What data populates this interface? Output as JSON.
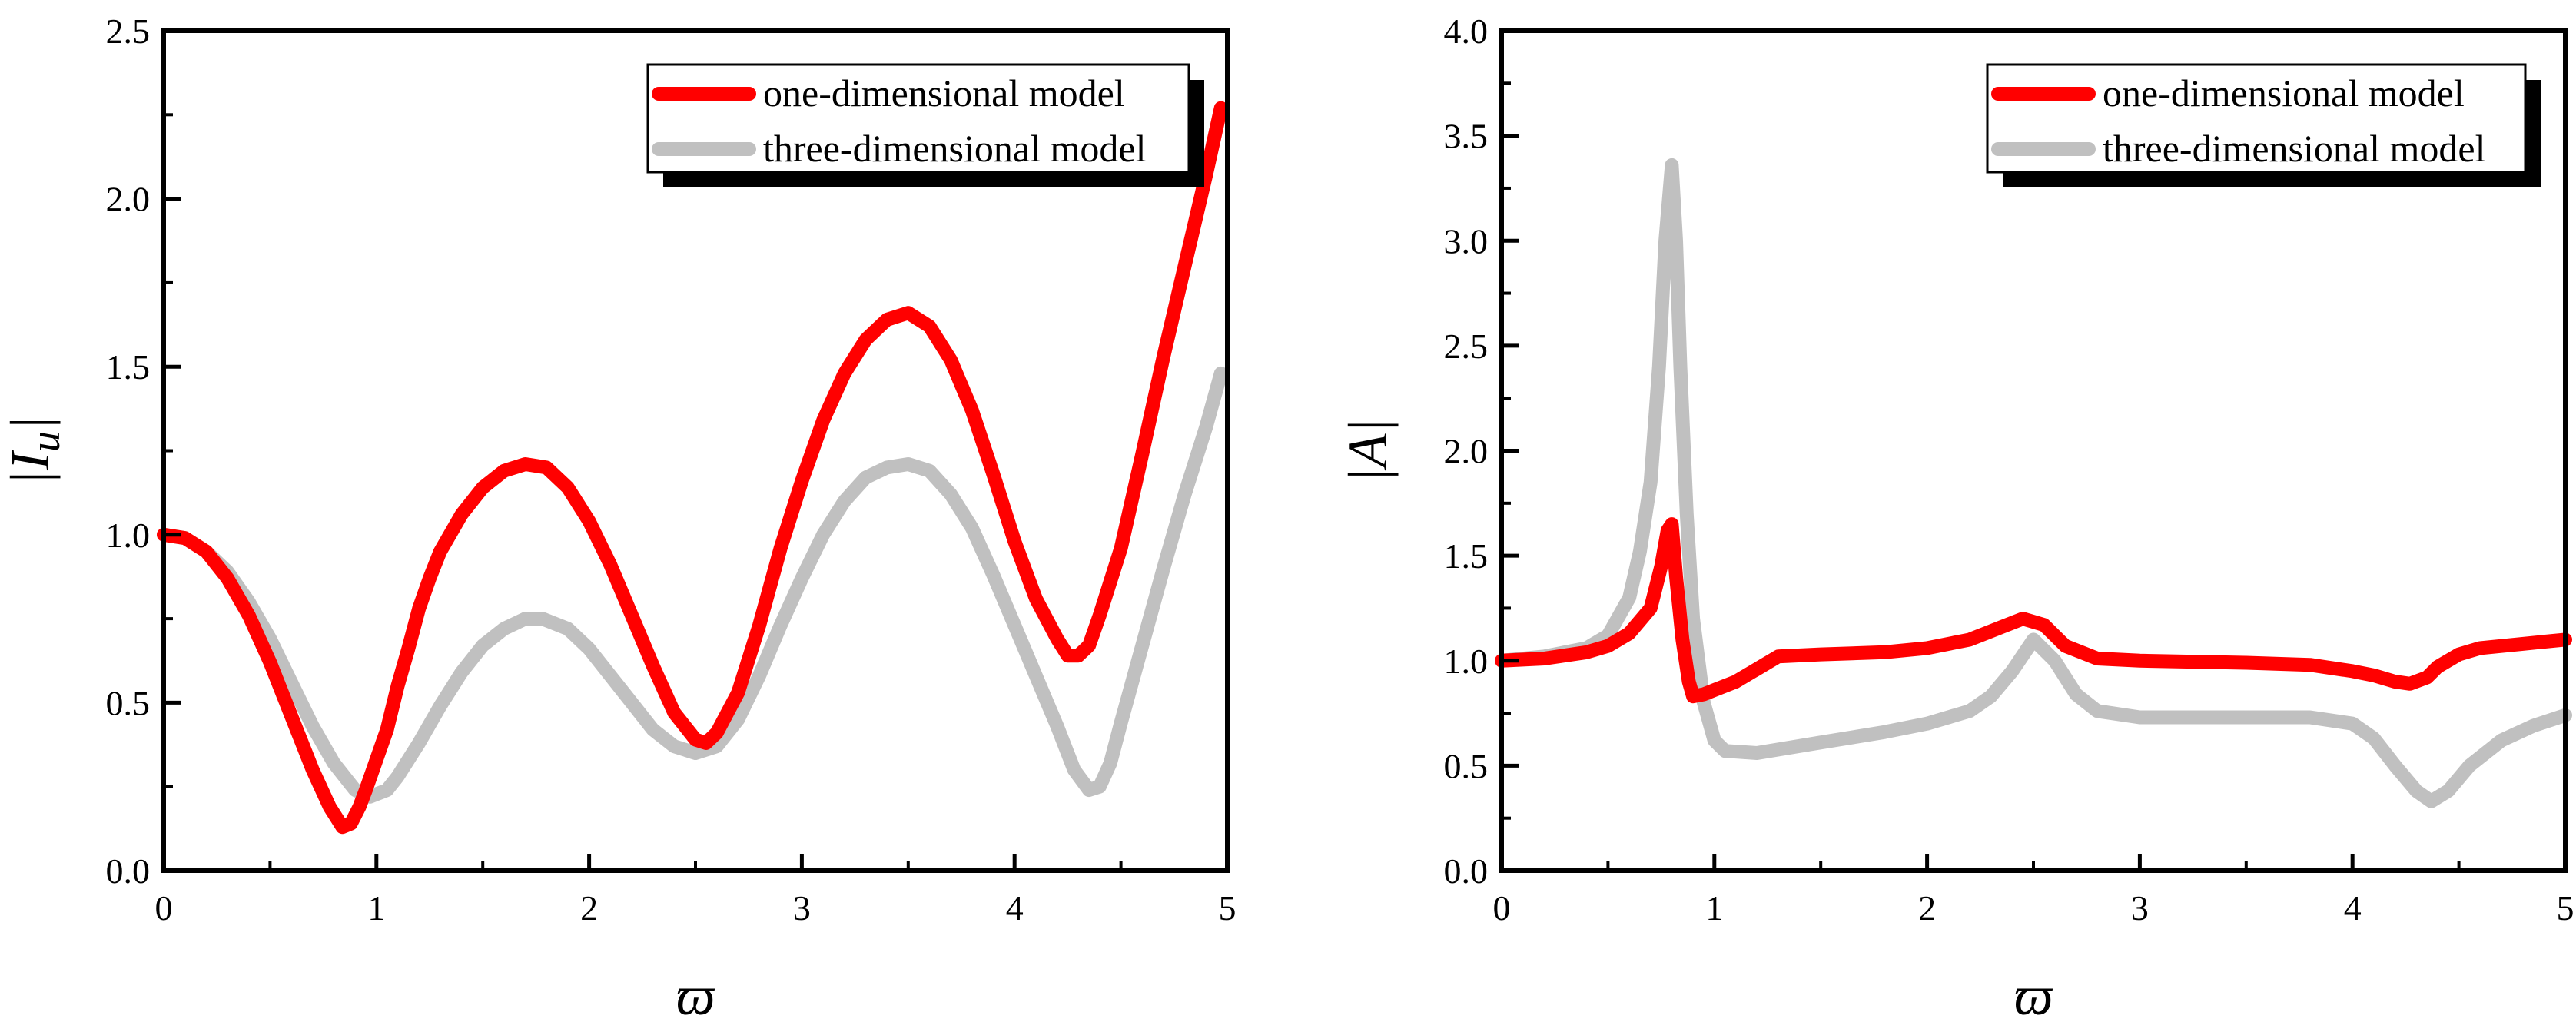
{
  "chart_data": [
    {
      "type": "line",
      "title": "",
      "xlabel": "ϖ",
      "ylabel": "|I_u|",
      "ylabel_main": "|I",
      "ylabel_sub": "u",
      "ylabel_end": "|",
      "xlim": [
        0,
        5
      ],
      "ylim": [
        0,
        2.5
      ],
      "x_ticks": [
        "0",
        "1",
        "2",
        "3",
        "4",
        "5"
      ],
      "y_ticks": [
        "0.0",
        "0.5",
        "1.0",
        "1.5",
        "2.0",
        "2.5"
      ],
      "legend_position": "top-right",
      "grid": false,
      "series": [
        {
          "name": "one-dimensional model",
          "color": "#ff0000",
          "points": [
            [
              0,
              1.0
            ],
            [
              0.1,
              0.99
            ],
            [
              0.2,
              0.95
            ],
            [
              0.3,
              0.87
            ],
            [
              0.4,
              0.76
            ],
            [
              0.5,
              0.62
            ],
            [
              0.6,
              0.46
            ],
            [
              0.7,
              0.3
            ],
            [
              0.78,
              0.19
            ],
            [
              0.84,
              0.13
            ],
            [
              0.88,
              0.14
            ],
            [
              0.92,
              0.19
            ],
            [
              0.95,
              0.24
            ],
            [
              1.0,
              0.33
            ],
            [
              1.05,
              0.42
            ],
            [
              1.1,
              0.55
            ],
            [
              1.15,
              0.66
            ],
            [
              1.2,
              0.78
            ],
            [
              1.25,
              0.87
            ],
            [
              1.3,
              0.95
            ],
            [
              1.4,
              1.06
            ],
            [
              1.5,
              1.14
            ],
            [
              1.6,
              1.19
            ],
            [
              1.7,
              1.21
            ],
            [
              1.8,
              1.2
            ],
            [
              1.9,
              1.14
            ],
            [
              2.0,
              1.04
            ],
            [
              2.1,
              0.91
            ],
            [
              2.2,
              0.76
            ],
            [
              2.3,
              0.61
            ],
            [
              2.4,
              0.47
            ],
            [
              2.5,
              0.39
            ],
            [
              2.55,
              0.38
            ],
            [
              2.6,
              0.41
            ],
            [
              2.7,
              0.53
            ],
            [
              2.8,
              0.73
            ],
            [
              2.9,
              0.96
            ],
            [
              3.0,
              1.16
            ],
            [
              3.1,
              1.34
            ],
            [
              3.2,
              1.48
            ],
            [
              3.3,
              1.58
            ],
            [
              3.4,
              1.64
            ],
            [
              3.5,
              1.66
            ],
            [
              3.6,
              1.62
            ],
            [
              3.7,
              1.52
            ],
            [
              3.8,
              1.37
            ],
            [
              3.9,
              1.18
            ],
            [
              4.0,
              0.98
            ],
            [
              4.1,
              0.81
            ],
            [
              4.2,
              0.69
            ],
            [
              4.25,
              0.64
            ],
            [
              4.3,
              0.64
            ],
            [
              4.35,
              0.67
            ],
            [
              4.4,
              0.76
            ],
            [
              4.5,
              0.96
            ],
            [
              4.6,
              1.24
            ],
            [
              4.7,
              1.53
            ],
            [
              4.8,
              1.8
            ],
            [
              4.9,
              2.07
            ],
            [
              4.97,
              2.27
            ]
          ]
        },
        {
          "name": "three-dimensional model",
          "color": "#c0c0c0",
          "points": [
            [
              0,
              1.0
            ],
            [
              0.1,
              0.99
            ],
            [
              0.2,
              0.95
            ],
            [
              0.3,
              0.89
            ],
            [
              0.4,
              0.8
            ],
            [
              0.5,
              0.69
            ],
            [
              0.6,
              0.56
            ],
            [
              0.7,
              0.43
            ],
            [
              0.8,
              0.32
            ],
            [
              0.9,
              0.24
            ],
            [
              0.97,
              0.22
            ],
            [
              1.05,
              0.24
            ],
            [
              1.1,
              0.28
            ],
            [
              1.2,
              0.38
            ],
            [
              1.3,
              0.49
            ],
            [
              1.4,
              0.59
            ],
            [
              1.5,
              0.67
            ],
            [
              1.6,
              0.72
            ],
            [
              1.7,
              0.75
            ],
            [
              1.78,
              0.75
            ],
            [
              1.9,
              0.72
            ],
            [
              2.0,
              0.66
            ],
            [
              2.1,
              0.58
            ],
            [
              2.2,
              0.5
            ],
            [
              2.3,
              0.42
            ],
            [
              2.4,
              0.37
            ],
            [
              2.5,
              0.35
            ],
            [
              2.6,
              0.37
            ],
            [
              2.7,
              0.45
            ],
            [
              2.8,
              0.58
            ],
            [
              2.9,
              0.73
            ],
            [
              3.0,
              0.87
            ],
            [
              3.1,
              1.0
            ],
            [
              3.2,
              1.1
            ],
            [
              3.3,
              1.17
            ],
            [
              3.4,
              1.2
            ],
            [
              3.5,
              1.21
            ],
            [
              3.6,
              1.19
            ],
            [
              3.7,
              1.12
            ],
            [
              3.8,
              1.02
            ],
            [
              3.9,
              0.88
            ],
            [
              4.0,
              0.73
            ],
            [
              4.1,
              0.58
            ],
            [
              4.2,
              0.43
            ],
            [
              4.28,
              0.3
            ],
            [
              4.35,
              0.24
            ],
            [
              4.4,
              0.25
            ],
            [
              4.45,
              0.32
            ],
            [
              4.5,
              0.44
            ],
            [
              4.6,
              0.67
            ],
            [
              4.7,
              0.9
            ],
            [
              4.8,
              1.12
            ],
            [
              4.9,
              1.32
            ],
            [
              4.97,
              1.48
            ]
          ]
        }
      ]
    },
    {
      "type": "line",
      "title": "",
      "xlabel": "ϖ",
      "ylabel": "|A|",
      "ylabel_main": "|A|",
      "ylabel_sub": "",
      "ylabel_end": "",
      "xlim": [
        0,
        5
      ],
      "ylim": [
        0,
        4.0
      ],
      "x_ticks": [
        "0",
        "1",
        "2",
        "3",
        "4",
        "5"
      ],
      "y_ticks": [
        "0.0",
        "0.5",
        "1.0",
        "1.5",
        "2.0",
        "2.5",
        "3.0",
        "3.5",
        "4.0"
      ],
      "legend_position": "top-right",
      "grid": false,
      "series": [
        {
          "name": "one-dimensional model",
          "color": "#ff0000",
          "points": [
            [
              0,
              1.0
            ],
            [
              0.2,
              1.01
            ],
            [
              0.4,
              1.04
            ],
            [
              0.5,
              1.07
            ],
            [
              0.6,
              1.13
            ],
            [
              0.7,
              1.25
            ],
            [
              0.75,
              1.45
            ],
            [
              0.78,
              1.62
            ],
            [
              0.8,
              1.65
            ],
            [
              0.82,
              1.4
            ],
            [
              0.85,
              1.1
            ],
            [
              0.88,
              0.9
            ],
            [
              0.9,
              0.83
            ],
            [
              0.95,
              0.84
            ],
            [
              1.0,
              0.86
            ],
            [
              1.1,
              0.9
            ],
            [
              1.2,
              0.96
            ],
            [
              1.3,
              1.02
            ],
            [
              1.5,
              1.03
            ],
            [
              1.8,
              1.04
            ],
            [
              2.0,
              1.06
            ],
            [
              2.2,
              1.1
            ],
            [
              2.35,
              1.16
            ],
            [
              2.45,
              1.2
            ],
            [
              2.55,
              1.17
            ],
            [
              2.65,
              1.07
            ],
            [
              2.8,
              1.01
            ],
            [
              3.0,
              1.0
            ],
            [
              3.5,
              0.99
            ],
            [
              3.8,
              0.98
            ],
            [
              4.0,
              0.95
            ],
            [
              4.1,
              0.93
            ],
            [
              4.2,
              0.9
            ],
            [
              4.27,
              0.89
            ],
            [
              4.35,
              0.92
            ],
            [
              4.4,
              0.97
            ],
            [
              4.5,
              1.03
            ],
            [
              4.6,
              1.06
            ],
            [
              4.8,
              1.08
            ],
            [
              5.0,
              1.1
            ]
          ]
        },
        {
          "name": "three-dimensional model",
          "color": "#c0c0c0",
          "points": [
            [
              0,
              1.0
            ],
            [
              0.2,
              1.02
            ],
            [
              0.4,
              1.06
            ],
            [
              0.5,
              1.12
            ],
            [
              0.6,
              1.3
            ],
            [
              0.65,
              1.52
            ],
            [
              0.7,
              1.85
            ],
            [
              0.74,
              2.4
            ],
            [
              0.77,
              3.0
            ],
            [
              0.8,
              3.36
            ],
            [
              0.82,
              3.0
            ],
            [
              0.84,
              2.4
            ],
            [
              0.87,
              1.7
            ],
            [
              0.9,
              1.2
            ],
            [
              0.95,
              0.8
            ],
            [
              1.0,
              0.62
            ],
            [
              1.05,
              0.57
            ],
            [
              1.2,
              0.56
            ],
            [
              1.5,
              0.61
            ],
            [
              1.8,
              0.66
            ],
            [
              2.0,
              0.7
            ],
            [
              2.2,
              0.76
            ],
            [
              2.3,
              0.83
            ],
            [
              2.4,
              0.95
            ],
            [
              2.5,
              1.1
            ],
            [
              2.6,
              1.0
            ],
            [
              2.7,
              0.84
            ],
            [
              2.8,
              0.76
            ],
            [
              3.0,
              0.73
            ],
            [
              3.5,
              0.73
            ],
            [
              3.8,
              0.73
            ],
            [
              4.0,
              0.7
            ],
            [
              4.1,
              0.63
            ],
            [
              4.2,
              0.5
            ],
            [
              4.3,
              0.38
            ],
            [
              4.37,
              0.33
            ],
            [
              4.45,
              0.38
            ],
            [
              4.55,
              0.5
            ],
            [
              4.7,
              0.62
            ],
            [
              4.85,
              0.69
            ],
            [
              5.0,
              0.74
            ]
          ]
        }
      ]
    }
  ]
}
